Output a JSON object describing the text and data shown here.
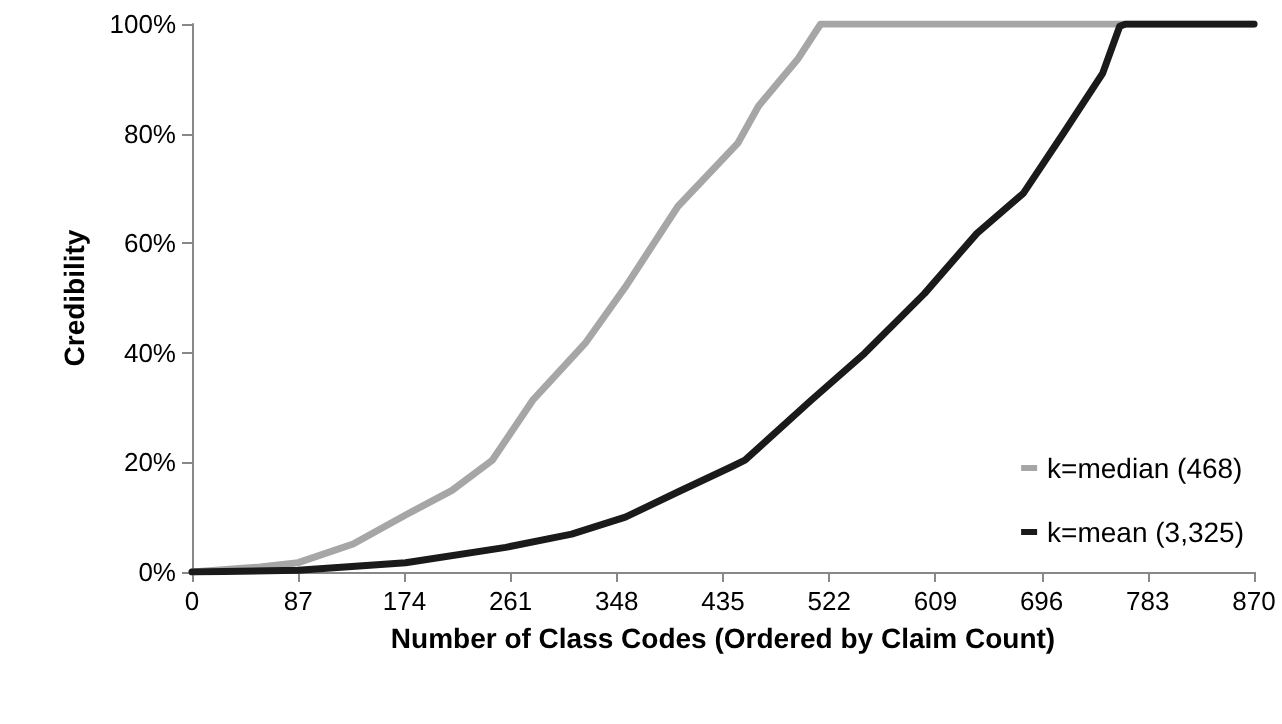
{
  "chart_data": {
    "type": "line",
    "xlabel": "Number of Class Codes (Ordered by Claim Count)",
    "ylabel": "Credibility",
    "xlim": [
      0,
      870
    ],
    "xticks": [
      0,
      87,
      174,
      261,
      348,
      435,
      522,
      609,
      696,
      783,
      870
    ],
    "ylim": [
      0,
      100
    ],
    "yticks": [
      {
        "value": 0,
        "label": "0%"
      },
      {
        "value": 20,
        "label": "20%"
      },
      {
        "value": 40,
        "label": "40%"
      },
      {
        "value": 60,
        "label": "60%"
      },
      {
        "value": 80,
        "label": "80%"
      },
      {
        "value": 100,
        "label": "100%"
      }
    ],
    "grid": false,
    "legend": "right",
    "marker": "none",
    "line_style": "solid",
    "series": [
      {
        "name": "k=median (468)",
        "color": "#a6a6a6",
        "x": [
          0,
          56,
          87,
          132,
          175,
          213,
          246,
          279,
          322,
          355,
          398,
          447,
          464,
          496,
          515,
          870
        ],
        "values": [
          0,
          0.9,
          1.7,
          5.1,
          10.4,
          14.9,
          20.4,
          31.3,
          41.7,
          52,
          66.7,
          78.2,
          85,
          93.5,
          100,
          100
        ]
      },
      {
        "name": "k=mean (3,325)",
        "color": "#1a1a1a",
        "x": [
          0,
          87,
          175,
          257,
          311,
          355,
          398,
          442,
          453,
          507,
          551,
          600,
          643,
          681,
          714,
          746,
          760,
          765,
          870
        ],
        "values": [
          0,
          0.3,
          1.7,
          4.5,
          6.9,
          10,
          14.6,
          19.2,
          20.4,
          31.3,
          39.9,
          50.8,
          61.8,
          69.1,
          80.1,
          91,
          99.6,
          100,
          100
        ]
      }
    ]
  }
}
